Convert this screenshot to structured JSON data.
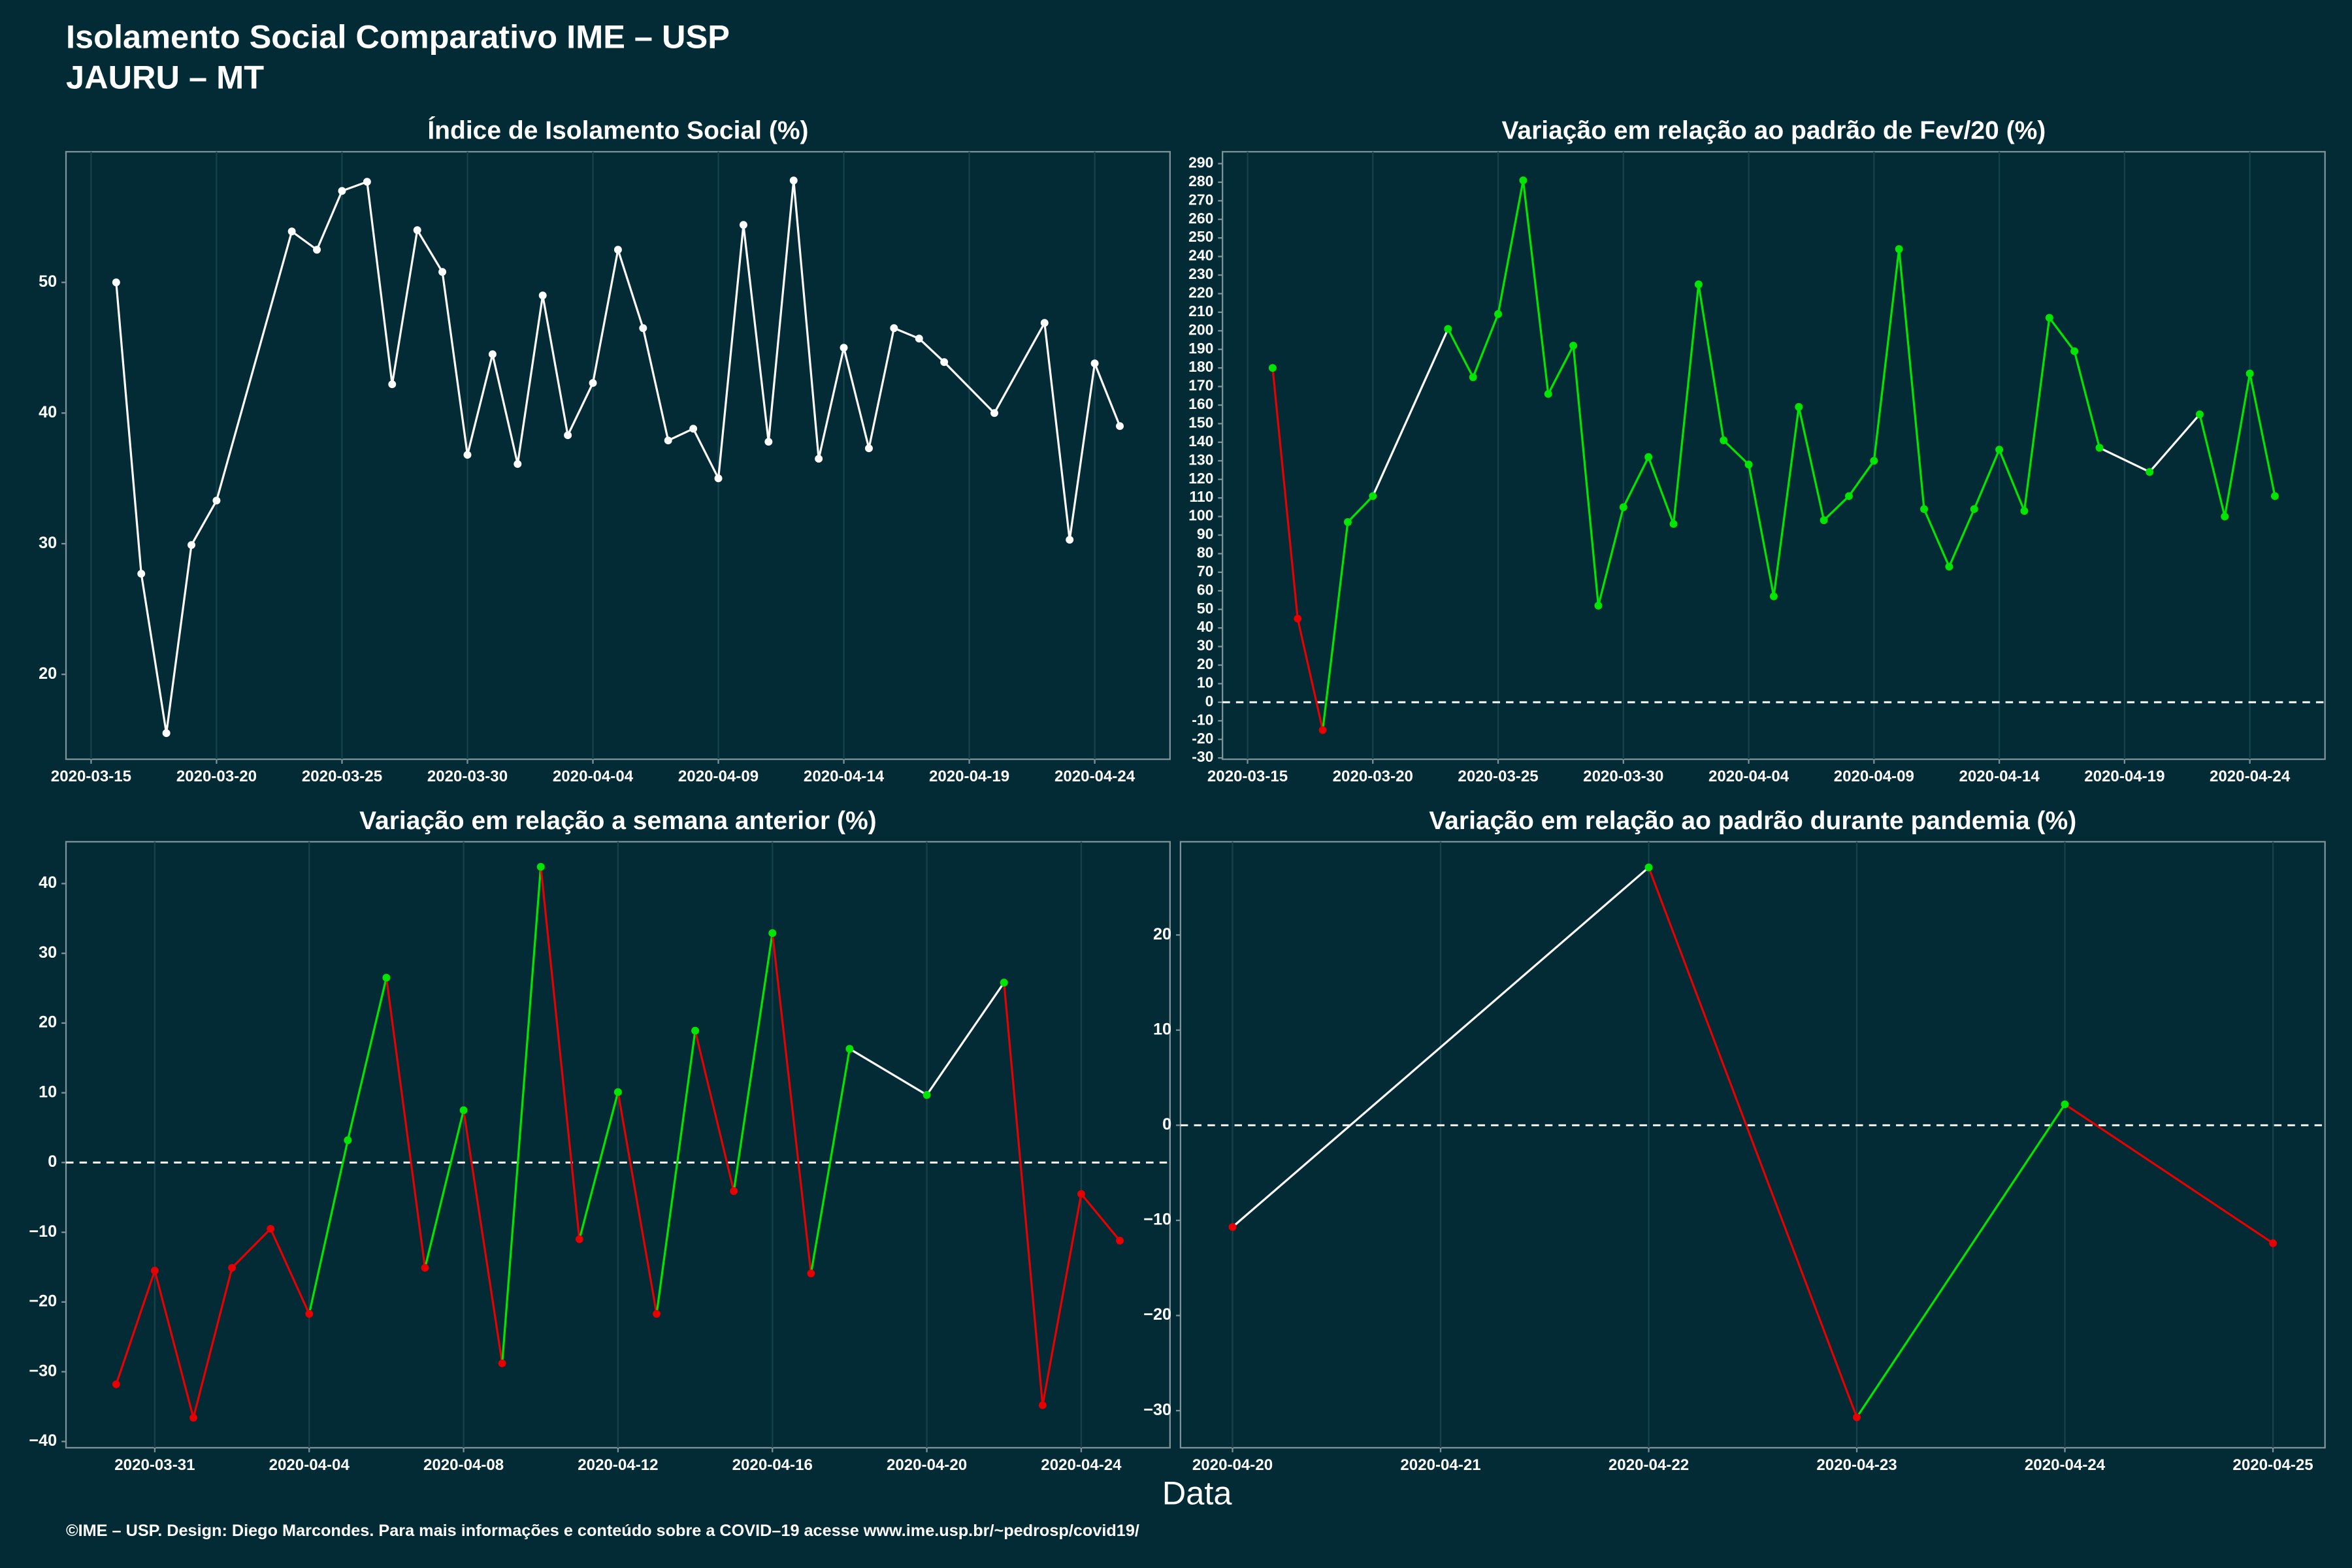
{
  "header": {
    "title": "Isolamento Social Comparativo IME – USP",
    "subtitle": "JAURU – MT"
  },
  "xlabel": "Data",
  "footer": "©IME – USP. Design: Diego Marcondes. Para mais informações e conteúdo sobre a COVID–19 acesse www.ime.usp.br/~pedrosp/covid19/",
  "chart_data": [
    {
      "type": "line",
      "title": "Índice de Isolamento Social (%)",
      "x": [
        "2020-03-16",
        "2020-03-17",
        "2020-03-18",
        "2020-03-19",
        "2020-03-20",
        "2020-03-23",
        "2020-03-24",
        "2020-03-25",
        "2020-03-26",
        "2020-03-27",
        "2020-03-28",
        "2020-03-29",
        "2020-03-30",
        "2020-03-31",
        "2020-04-01",
        "2020-04-02",
        "2020-04-03",
        "2020-04-04",
        "2020-04-05",
        "2020-04-06",
        "2020-04-07",
        "2020-04-08",
        "2020-04-09",
        "2020-04-10",
        "2020-04-11",
        "2020-04-12",
        "2020-04-13",
        "2020-04-14",
        "2020-04-15",
        "2020-04-16",
        "2020-04-17",
        "2020-04-18",
        "2020-04-20",
        "2020-04-22",
        "2020-04-23",
        "2020-04-24",
        "2020-04-25"
      ],
      "series": [
        {
          "color": "#ffffff",
          "values": [
            50.0,
            27.7,
            15.5,
            29.9,
            33.3,
            53.9,
            52.5,
            57.0,
            57.7,
            42.2,
            54.0,
            50.8,
            36.8,
            44.5,
            36.1,
            49.0,
            38.3,
            42.3,
            52.5,
            46.5,
            37.9,
            38.8,
            35.0,
            54.4,
            37.8,
            57.8,
            36.5,
            45.0,
            37.3,
            46.5,
            45.7,
            43.9,
            40.0,
            46.9,
            30.3,
            43.8,
            39.0
          ]
        }
      ],
      "ylim": [
        13.5,
        60
      ],
      "yticks": [
        20,
        30,
        40,
        50
      ],
      "xticks": [
        "2020-03-15",
        "2020-03-20",
        "2020-03-25",
        "2020-03-30",
        "2020-04-04",
        "2020-04-09",
        "2020-04-14",
        "2020-04-19",
        "2020-04-24"
      ]
    },
    {
      "type": "line",
      "title": "Variação em relação ao padrão de Fev/20 (%)",
      "x": [
        "2020-03-16",
        "2020-03-17",
        "2020-03-18",
        "2020-03-19",
        "2020-03-20",
        "2020-03-23",
        "2020-03-24",
        "2020-03-25",
        "2020-03-26",
        "2020-03-27",
        "2020-03-28",
        "2020-03-29",
        "2020-03-30",
        "2020-03-31",
        "2020-04-01",
        "2020-04-02",
        "2020-04-03",
        "2020-04-04",
        "2020-04-05",
        "2020-04-06",
        "2020-04-07",
        "2020-04-08",
        "2020-04-09",
        "2020-04-10",
        "2020-04-11",
        "2020-04-12",
        "2020-04-13",
        "2020-04-14",
        "2020-04-15",
        "2020-04-16",
        "2020-04-17",
        "2020-04-18",
        "2020-04-20",
        "2020-04-22",
        "2020-04-23",
        "2020-04-24",
        "2020-04-25"
      ],
      "series": [
        {
          "gap_color": "#ffffff",
          "values": [
            180,
            45,
            -15,
            97,
            111,
            201,
            175,
            209,
            281,
            166,
            192,
            52,
            105,
            132,
            96,
            225,
            141,
            128,
            57,
            159,
            98,
            111,
            130,
            244,
            104,
            73,
            104,
            136,
            103,
            207,
            189,
            137,
            124,
            155,
            100,
            177,
            111
          ],
          "point_colors": [
            "#00e600",
            "#e60000",
            "#e60000",
            "#00e600",
            "#00e600",
            "#00e600",
            "#00e600",
            "#00e600",
            "#00e600",
            "#00e600",
            "#00e600",
            "#00e600",
            "#00e600",
            "#00e600",
            "#00e600",
            "#00e600",
            "#00e600",
            "#00e600",
            "#00e600",
            "#00e600",
            "#00e600",
            "#00e600",
            "#00e600",
            "#00e600",
            "#00e600",
            "#00e600",
            "#00e600",
            "#00e600",
            "#00e600",
            "#00e600",
            "#00e600",
            "#00e600",
            "#00e600",
            "#00e600",
            "#00e600",
            "#00e600",
            "#00e600"
          ]
        }
      ],
      "hline": 0,
      "ylim": [
        -30.7,
        296.4
      ],
      "yticks": [
        -30,
        -20,
        -10,
        0,
        10,
        20,
        30,
        40,
        50,
        60,
        70,
        80,
        90,
        100,
        110,
        120,
        130,
        140,
        150,
        160,
        170,
        180,
        190,
        200,
        210,
        220,
        230,
        240,
        250,
        260,
        270,
        280,
        290
      ],
      "xticks": [
        "2020-03-15",
        "2020-03-20",
        "2020-03-25",
        "2020-03-30",
        "2020-04-04",
        "2020-04-09",
        "2020-04-14",
        "2020-04-19",
        "2020-04-24"
      ]
    },
    {
      "type": "line",
      "title": "Variação em relação a semana anterior (%)",
      "x": [
        "2020-03-30",
        "2020-03-31",
        "2020-04-01",
        "2020-04-02",
        "2020-04-03",
        "2020-04-04",
        "2020-04-05",
        "2020-04-06",
        "2020-04-07",
        "2020-04-08",
        "2020-04-09",
        "2020-04-10",
        "2020-04-11",
        "2020-04-12",
        "2020-04-13",
        "2020-04-14",
        "2020-04-15",
        "2020-04-16",
        "2020-04-17",
        "2020-04-18",
        "2020-04-20",
        "2020-04-22",
        "2020-04-23",
        "2020-04-24",
        "2020-04-25"
      ],
      "series": [
        {
          "gap_color": "#ffffff",
          "values": [
            -31.8,
            -15.5,
            -36.6,
            -15.1,
            -9.5,
            -21.7,
            3.2,
            26.5,
            -15.1,
            7.5,
            -28.8,
            42.4,
            -11.0,
            10.1,
            -21.7,
            18.9,
            -4.1,
            32.9,
            -15.9,
            16.3,
            9.7,
            25.8,
            -34.8,
            -4.5,
            -11.2
          ],
          "point_colors": [
            "#e60000",
            "#e60000",
            "#e60000",
            "#e60000",
            "#e60000",
            "#e60000",
            "#00e600",
            "#00e600",
            "#e60000",
            "#00e600",
            "#e60000",
            "#00e600",
            "#e60000",
            "#00e600",
            "#e60000",
            "#00e600",
            "#e60000",
            "#00e600",
            "#e60000",
            "#00e600",
            "#00e600",
            "#00e600",
            "#e60000",
            "#e60000",
            "#e60000"
          ]
        }
      ],
      "hline": 0,
      "ylim": [
        -40.9,
        46
      ],
      "yticks": [
        {
          "value": -40,
          "label": "−40"
        },
        {
          "value": -30,
          "label": "−30"
        },
        {
          "value": -20,
          "label": "−20"
        },
        {
          "value": -10,
          "label": "−10"
        },
        0,
        10,
        20,
        30,
        40
      ],
      "xticks": [
        "2020-03-31",
        "2020-04-04",
        "2020-04-08",
        "2020-04-12",
        "2020-04-16",
        "2020-04-20",
        "2020-04-24"
      ]
    },
    {
      "type": "line",
      "title": "Variação em relação ao padrão durante pandemia (%)",
      "x": [
        "2020-04-20",
        "2020-04-22",
        "2020-04-23",
        "2020-04-24",
        "2020-04-25"
      ],
      "series": [
        {
          "gap_color": "#ffffff",
          "values": [
            -10.7,
            27.1,
            -30.7,
            2.2,
            -12.4
          ],
          "point_colors": [
            "#e60000",
            "#00e600",
            "#e60000",
            "#00e600",
            "#e60000"
          ]
        }
      ],
      "hline": 0,
      "ylim": [
        -33.9,
        29.8
      ],
      "yticks": [
        {
          "value": -30,
          "label": "−30"
        },
        {
          "value": -20,
          "label": "−20"
        },
        {
          "value": -10,
          "label": "−10"
        },
        0,
        10,
        20
      ],
      "xticks": [
        "2020-04-20",
        "2020-04-21",
        "2020-04-22",
        "2020-04-23",
        "2020-04-24",
        "2020-04-25"
      ]
    }
  ]
}
